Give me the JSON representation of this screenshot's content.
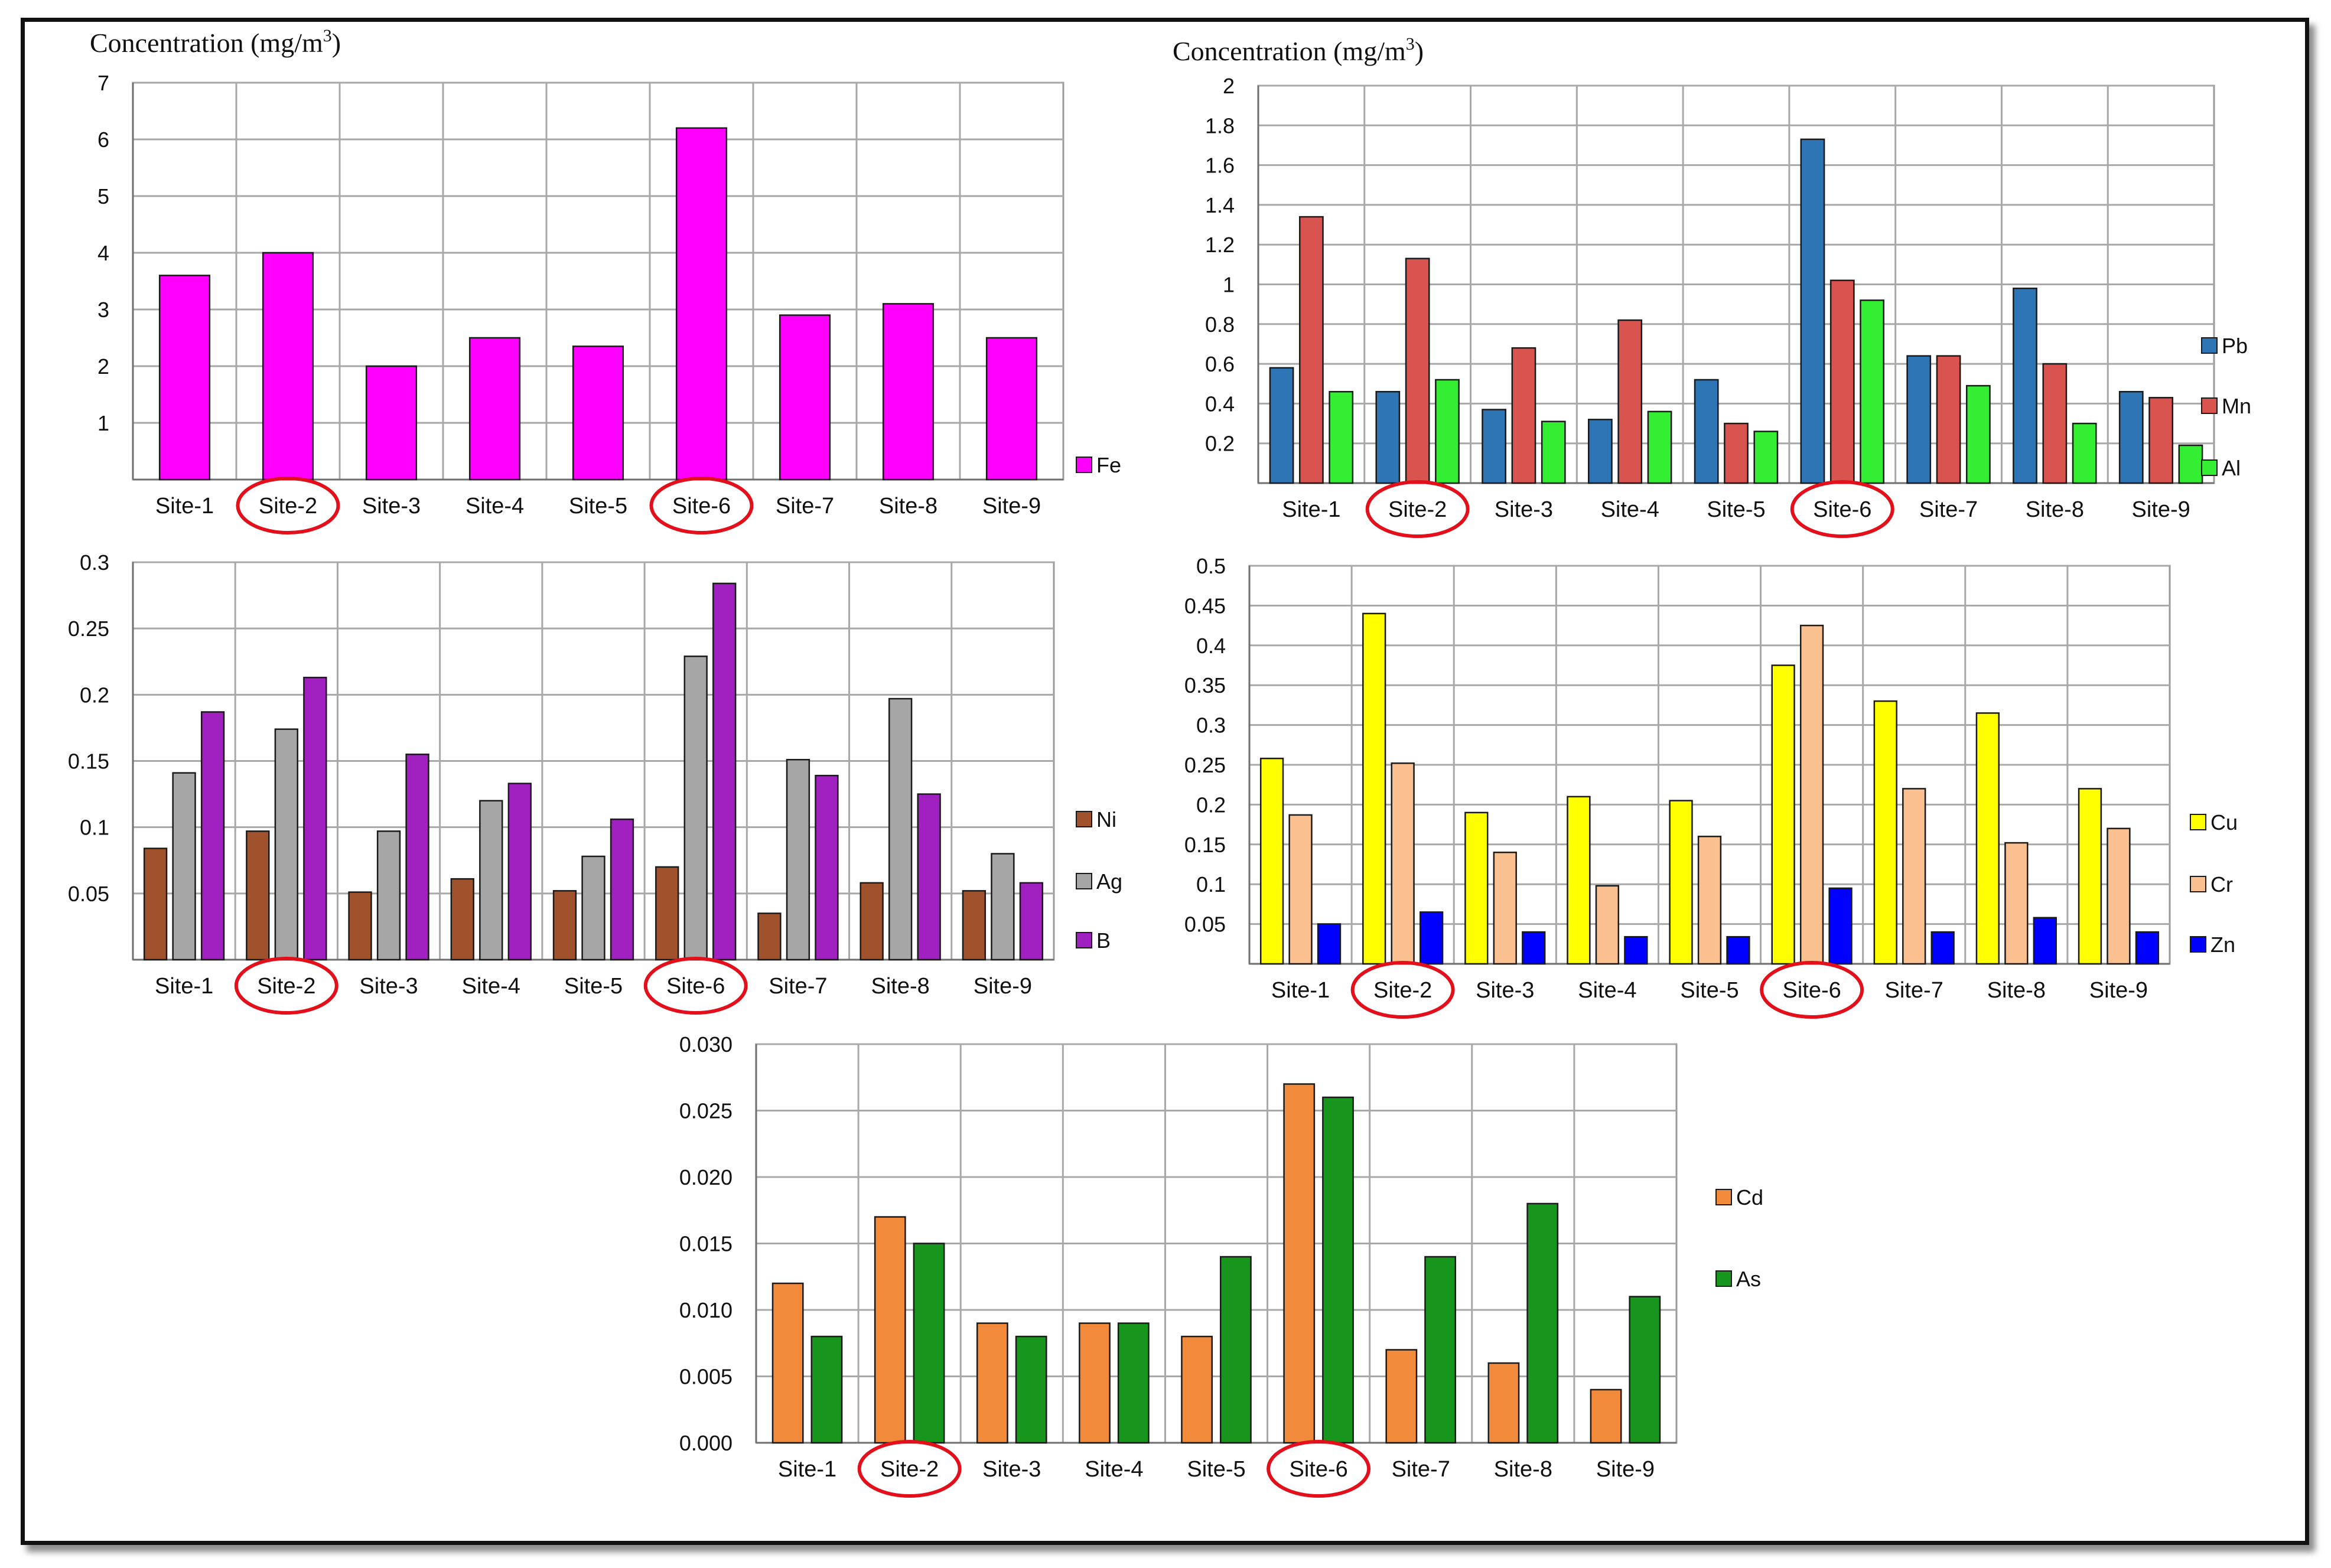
{
  "axis_title": {
    "prefix": "Concentration (mg/m",
    "sup": "3",
    "suffix": ")"
  },
  "highlighted_sites": [
    "Site-2",
    "Site-6"
  ],
  "colors": {
    "highlight": "#e3101b"
  },
  "chart_data": [
    {
      "id": "fe",
      "type": "bar",
      "title": "",
      "ylabel": "Concentration (mg/m3)",
      "categories": [
        "Site-1",
        "Site-2",
        "Site-3",
        "Site-4",
        "Site-5",
        "Site-6",
        "Site-7",
        "Site-8",
        "Site-9"
      ],
      "ylim": [
        0,
        7
      ],
      "yticks": [
        "",
        "1",
        "2",
        "3",
        "4",
        "5",
        "6",
        "7"
      ],
      "series": [
        {
          "name": "Fe",
          "color": "#ff00ff",
          "values": [
            3.6,
            4.0,
            2.0,
            2.5,
            2.35,
            6.2,
            2.9,
            3.1,
            2.5
          ]
        }
      ]
    },
    {
      "id": "pbmnal",
      "type": "bar",
      "title": "",
      "ylabel": "Concentration (mg/m3)",
      "categories": [
        "Site-1",
        "Site-2",
        "Site-3",
        "Site-4",
        "Site-5",
        "Site-6",
        "Site-7",
        "Site-8",
        "Site-9"
      ],
      "ylim": [
        0,
        2
      ],
      "yticks": [
        "",
        "0.2",
        "0.4",
        "0.6",
        "0.8",
        "1",
        "1.2",
        "1.4",
        "1.6",
        "1.8",
        "2"
      ],
      "series": [
        {
          "name": "Pb",
          "color": "#2e75b6",
          "values": [
            0.58,
            0.46,
            0.37,
            0.32,
            0.52,
            1.73,
            0.64,
            0.98,
            0.46
          ]
        },
        {
          "name": "Mn",
          "color": "#d9534f",
          "values": [
            1.34,
            1.13,
            0.68,
            0.82,
            0.3,
            1.02,
            0.64,
            0.6,
            0.43
          ]
        },
        {
          "name": "Al",
          "color": "#33ee33",
          "values": [
            0.46,
            0.52,
            0.31,
            0.36,
            0.26,
            0.92,
            0.49,
            0.3,
            0.19
          ]
        }
      ]
    },
    {
      "id": "niagb",
      "type": "bar",
      "title": "",
      "categories": [
        "Site-1",
        "Site-2",
        "Site-3",
        "Site-4",
        "Site-5",
        "Site-6",
        "Site-7",
        "Site-8",
        "Site-9"
      ],
      "ylim": [
        0,
        0.3
      ],
      "yticks": [
        "",
        "0.05",
        "0.1",
        "0.15",
        "0.2",
        "0.25",
        "0.3"
      ],
      "series": [
        {
          "name": "Ni",
          "color": "#a0522d",
          "values": [
            0.084,
            0.097,
            0.051,
            0.061,
            0.052,
            0.07,
            0.035,
            0.058,
            0.052
          ]
        },
        {
          "name": "Ag",
          "color": "#a6a6a6",
          "values": [
            0.141,
            0.174,
            0.097,
            0.12,
            0.078,
            0.229,
            0.151,
            0.197,
            0.08
          ]
        },
        {
          "name": "B",
          "color": "#a020c0",
          "values": [
            0.187,
            0.213,
            0.155,
            0.133,
            0.106,
            0.284,
            0.139,
            0.125,
            0.058
          ]
        }
      ]
    },
    {
      "id": "cucrzn",
      "type": "bar",
      "title": "",
      "categories": [
        "Site-1",
        "Site-2",
        "Site-3",
        "Site-4",
        "Site-5",
        "Site-6",
        "Site-7",
        "Site-8",
        "Site-9"
      ],
      "ylim": [
        0,
        0.5
      ],
      "yticks": [
        "",
        "0.05",
        "0.1",
        "0.15",
        "0.2",
        "0.25",
        "0.3",
        "0.35",
        "0.4",
        "0.45",
        "0.5"
      ],
      "series": [
        {
          "name": "Cu",
          "color": "#ffff00",
          "values": [
            0.258,
            0.44,
            0.19,
            0.21,
            0.205,
            0.375,
            0.33,
            0.315,
            0.22
          ]
        },
        {
          "name": "Cr",
          "color": "#fac090",
          "values": [
            0.187,
            0.252,
            0.14,
            0.098,
            0.16,
            0.425,
            0.22,
            0.152,
            0.17
          ]
        },
        {
          "name": "Zn",
          "color": "#0000ff",
          "values": [
            0.05,
            0.065,
            0.04,
            0.034,
            0.034,
            0.095,
            0.04,
            0.058,
            0.04
          ]
        }
      ]
    },
    {
      "id": "cdas",
      "type": "bar",
      "title": "",
      "categories": [
        "Site-1",
        "Site-2",
        "Site-3",
        "Site-4",
        "Site-5",
        "Site-6",
        "Site-7",
        "Site-8",
        "Site-9"
      ],
      "ylim": [
        0,
        0.03
      ],
      "yticks": [
        "0.000",
        "0.005",
        "0.010",
        "0.015",
        "0.020",
        "0.025",
        "0.030"
      ],
      "series": [
        {
          "name": "Cd",
          "color": "#f28a3c",
          "values": [
            0.012,
            0.017,
            0.009,
            0.009,
            0.008,
            0.027,
            0.007,
            0.006,
            0.004
          ]
        },
        {
          "name": "As",
          "color": "#17951c",
          "values": [
            0.008,
            0.015,
            0.008,
            0.009,
            0.014,
            0.026,
            0.014,
            0.018,
            0.011
          ]
        }
      ]
    }
  ]
}
